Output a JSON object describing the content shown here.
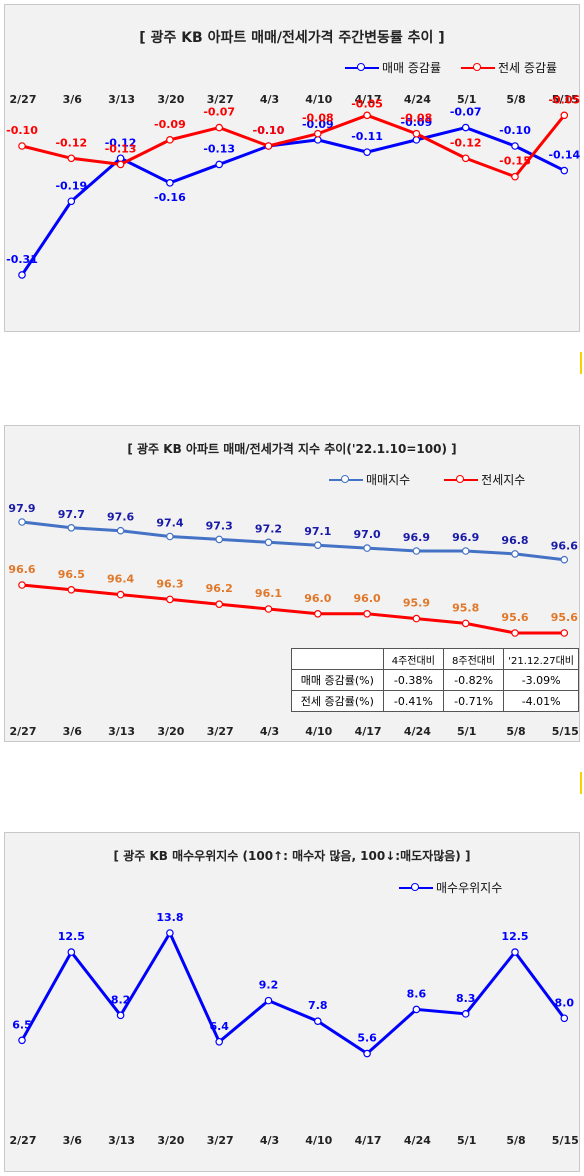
{
  "x_labels": [
    "2/27",
    "3/6",
    "3/13",
    "3/20",
    "3/27",
    "4/3",
    "4/10",
    "4/17",
    "4/24",
    "5/1",
    "5/8",
    "5/15"
  ],
  "colors": {
    "blue": "#0000ff",
    "red": "#ff0000",
    "steel_blue": "#4472c4",
    "orange_label": "#e0782a"
  },
  "chart_data": [
    {
      "type": "line",
      "title": "[ 광주  KB 아파트 매매/전세가격 주간변동률 추이 ]",
      "categories": [
        "2/27",
        "3/6",
        "3/13",
        "3/20",
        "3/27",
        "4/3",
        "4/10",
        "4/17",
        "4/24",
        "5/1",
        "5/8",
        "5/15"
      ],
      "series": [
        {
          "name": "매매 증감률",
          "color": "#0000ff",
          "values": [
            -0.31,
            -0.19,
            -0.12,
            -0.16,
            -0.13,
            -0.1,
            -0.09,
            -0.11,
            -0.09,
            -0.07,
            -0.1,
            -0.14
          ]
        },
        {
          "name": "전세 증감률",
          "color": "#ff0000",
          "values": [
            -0.1,
            -0.12,
            -0.13,
            -0.09,
            -0.07,
            -0.1,
            -0.08,
            -0.05,
            -0.08,
            -0.12,
            -0.15,
            -0.05
          ]
        }
      ],
      "ylim": [
        -0.33,
        -0.02
      ],
      "legend": "top-right"
    },
    {
      "type": "line",
      "title": "[  광주  KB 아파트 매매/전세가격 지수 추이('22.1.10=100)  ]",
      "categories": [
        "2/27",
        "3/6",
        "3/13",
        "3/20",
        "3/27",
        "4/3",
        "4/10",
        "4/17",
        "4/24",
        "5/1",
        "5/8",
        "5/15"
      ],
      "series": [
        {
          "name": "매매지수",
          "color": "#4472c4",
          "values": [
            97.9,
            97.7,
            97.6,
            97.4,
            97.3,
            97.2,
            97.1,
            97.0,
            96.9,
            96.9,
            96.8,
            96.6
          ]
        },
        {
          "name": "전세지수",
          "color": "#ff0000",
          "values": [
            96.6,
            96.5,
            96.4,
            96.3,
            96.2,
            96.1,
            96.0,
            96.0,
            95.9,
            95.8,
            95.6,
            95.6
          ]
        }
      ],
      "value_labels_2": [
        "96.6",
        "96.5",
        "96.4",
        "96.3",
        "96.2",
        "96.1",
        "96.0",
        "96.0",
        "95.9",
        "95.8",
        "95.6",
        "95.6"
      ],
      "legend": "top-right",
      "table": {
        "headers": [
          "",
          "4주전대비",
          "8주전대비",
          "'21.12.27대비"
        ],
        "rows": [
          [
            "매매 증감률(%)",
            "-0.38%",
            "-0.82%",
            "-3.09%"
          ],
          [
            "전세 증감률(%)",
            "-0.41%",
            "-0.71%",
            "-4.01%"
          ]
        ]
      }
    },
    {
      "type": "line",
      "title": "[  광주  KB 매수우위지수 (100↑: 매수자 많음, 100↓:매도자많음)  ]",
      "categories": [
        "2/27",
        "3/6",
        "3/13",
        "3/20",
        "3/27",
        "4/3",
        "4/10",
        "4/17",
        "4/24",
        "5/1",
        "5/8",
        "5/15"
      ],
      "series": [
        {
          "name": "매수우위지수",
          "color": "#0000ff",
          "values": [
            6.5,
            12.5,
            8.2,
            13.8,
            6.4,
            9.2,
            7.8,
            5.6,
            8.6,
            8.3,
            12.5,
            8.0
          ]
        }
      ],
      "legend": "top-right"
    }
  ]
}
